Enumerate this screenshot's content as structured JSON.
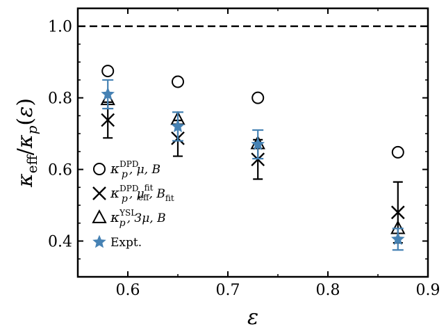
{
  "chart_data": {
    "type": "scatter",
    "xlabel": "ε",
    "ylabel": "κeff/κp(ε)",
    "xlim": [
      0.55,
      0.9
    ],
    "ylim": [
      0.3,
      1.05
    ],
    "xticks": [
      0.6,
      0.7,
      0.8,
      0.9
    ],
    "yticks": [
      0.4,
      0.6,
      0.8,
      1.0
    ],
    "x_tick_labels": [
      "0.6",
      "0.7",
      "0.8",
      "0.9"
    ],
    "y_tick_labels": [
      "0.4",
      "0.6",
      "0.8",
      "1.0"
    ],
    "reference_line": {
      "y": 1.0,
      "style": "dashed",
      "color": "#000000"
    },
    "legend_position": "left",
    "series": [
      {
        "key": "circle",
        "marker": "circle",
        "color": "#000000",
        "legend": {
          "k": "κ",
          "sub": "p",
          "sup": "DPD",
          "rest": ", μ, B"
        },
        "x": [
          0.58,
          0.65,
          0.73,
          0.87
        ],
        "y": [
          0.875,
          0.845,
          0.8,
          0.648
        ]
      },
      {
        "key": "cross",
        "marker": "x",
        "color": "#000000",
        "legend": {
          "k": "κ",
          "sub": "p",
          "sup": "DPD",
          "rest": ", μ",
          "rest_sub": "eff",
          "rest_sup": "fit",
          "rest2": ", B",
          "rest2_sub": "fit"
        },
        "x": [
          0.58,
          0.65,
          0.73,
          0.87
        ],
        "y": [
          0.738,
          0.687,
          0.628,
          0.48
        ],
        "err": [
          0.05,
          0.05,
          0.055,
          0.085
        ]
      },
      {
        "key": "triangle",
        "marker": "triangle",
        "color": "#000000",
        "legend": {
          "k": "κ",
          "sub": "p",
          "sup": "YSL",
          "rest": ", 3μ, B"
        },
        "x": [
          0.58,
          0.65,
          0.73,
          0.87
        ],
        "y": [
          0.795,
          0.74,
          0.672,
          0.435
        ]
      },
      {
        "key": "star",
        "marker": "star",
        "color": "#4682b4",
        "legend": {
          "k": "Expt.",
          "sub": "",
          "sup": "",
          "rest": ""
        },
        "x": [
          0.58,
          0.65,
          0.73,
          0.87
        ],
        "y": [
          0.81,
          0.72,
          0.67,
          0.405
        ],
        "err": [
          0.04,
          0.04,
          0.04,
          0.03
        ]
      }
    ]
  }
}
